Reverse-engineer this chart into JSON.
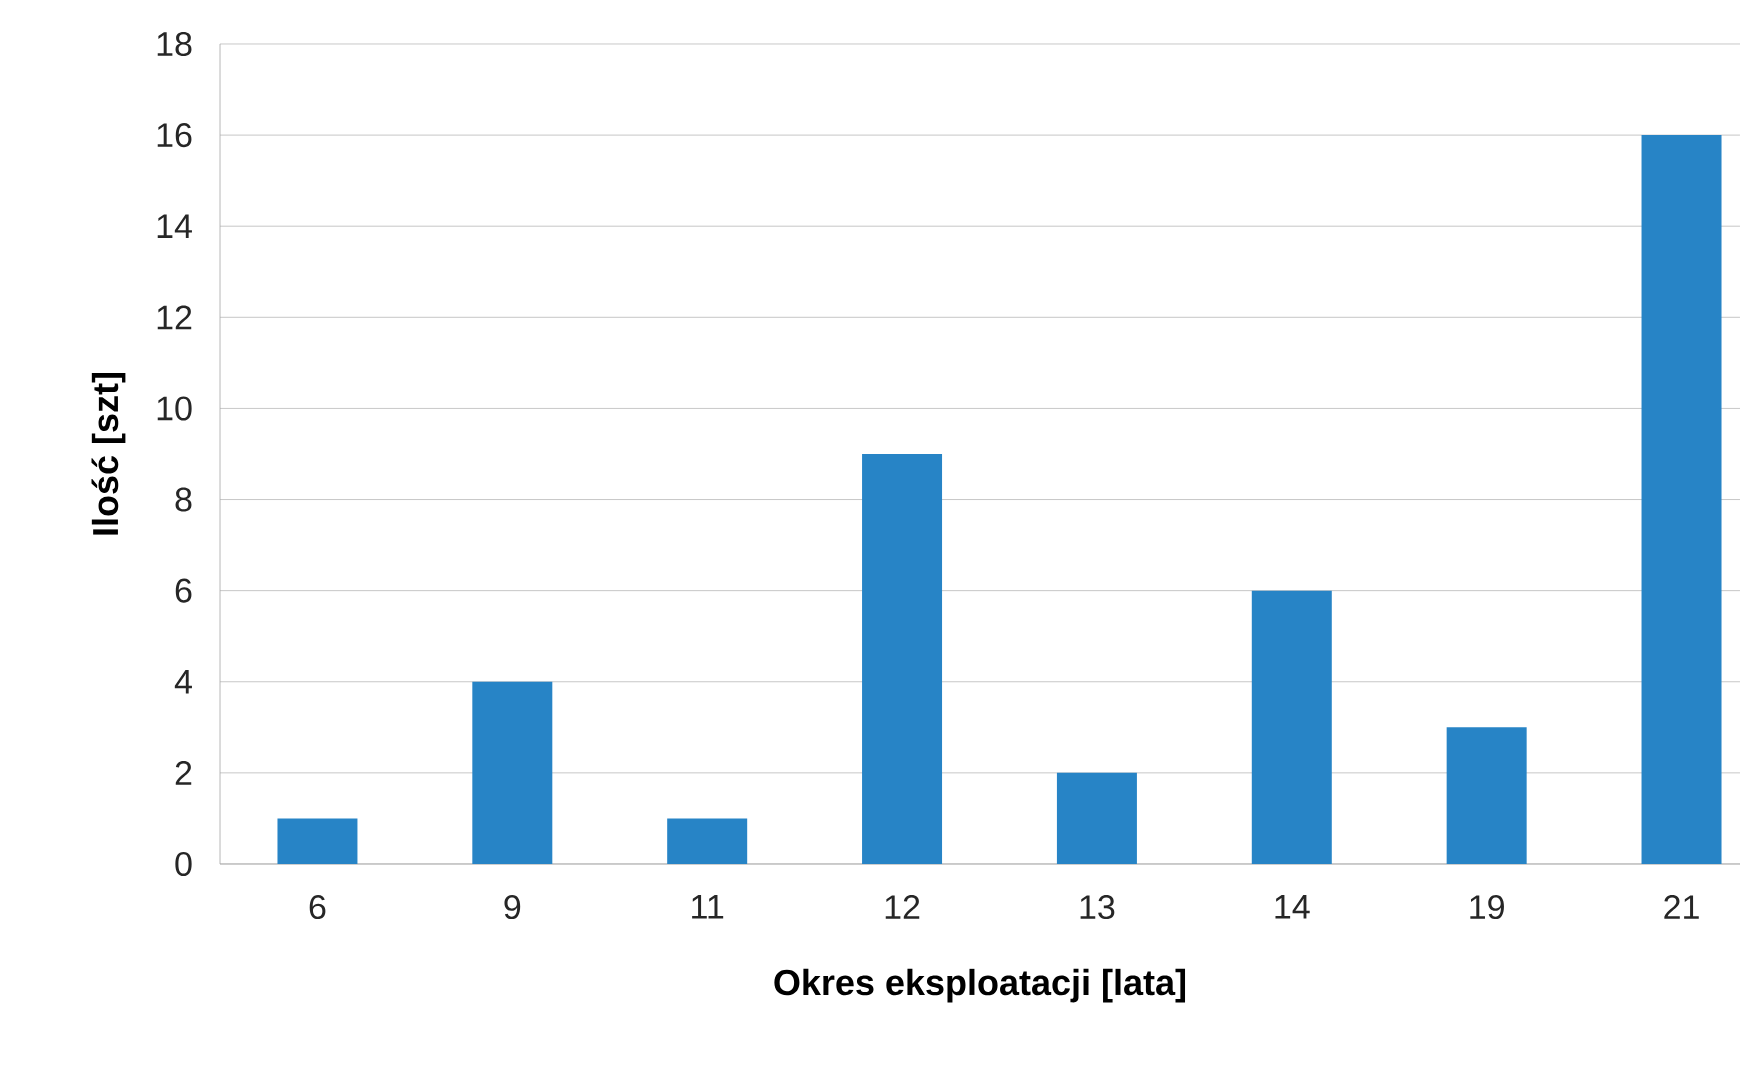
{
  "chart_data": {
    "type": "bar",
    "xlabel": "Okres eksploatacji [lata]",
    "ylabel": "Ilość [szt]",
    "categories": [
      "6",
      "9",
      "11",
      "12",
      "13",
      "14",
      "19",
      "21"
    ],
    "values": [
      1,
      4,
      1,
      9,
      2,
      6,
      3,
      16
    ],
    "color": "#2784c6",
    "ylim": [
      0,
      18
    ],
    "yticks": [
      0,
      2,
      4,
      6,
      8,
      10,
      12,
      14,
      16,
      18
    ],
    "grid": "y"
  }
}
